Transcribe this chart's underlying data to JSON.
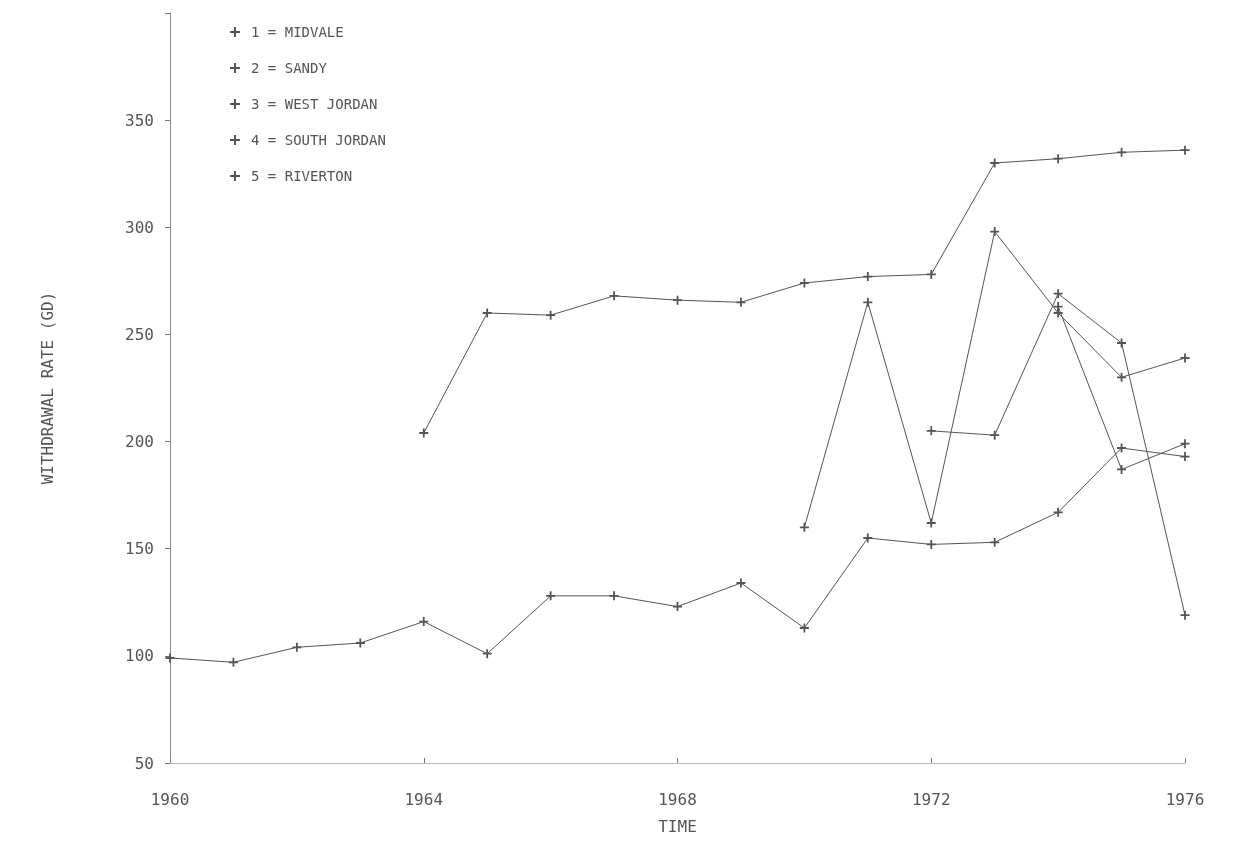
{
  "chart_data": {
    "type": "line",
    "xlabel": "TIME",
    "ylabel": "WITHDRAWAL RATE (GD)",
    "x": [
      1960,
      1961,
      1962,
      1963,
      1964,
      1965,
      1966,
      1967,
      1968,
      1969,
      1970,
      1971,
      1972,
      1973,
      1974,
      1975,
      1976
    ],
    "xlim": [
      1960,
      1976
    ],
    "xticks": [
      1960,
      1964,
      1968,
      1972,
      1976
    ],
    "ylim": [
      50,
      400
    ],
    "yticks": [
      50,
      100,
      150,
      200,
      250,
      300,
      350,
      {
        "value": 400,
        "label": null
      }
    ],
    "grid": false,
    "legend": "top left",
    "line_style": "solid",
    "marker": "cross",
    "series": [
      {
        "name": "1 = MIDVALE",
        "color": "#555555",
        "values": [
          null,
          null,
          null,
          null,
          204,
          260,
          259,
          268,
          266,
          265,
          274,
          277,
          278,
          330,
          332,
          335,
          336
        ]
      },
      {
        "name": "2 = SANDY",
        "color": "#555555",
        "values": [
          null,
          null,
          null,
          null,
          null,
          null,
          null,
          null,
          null,
          null,
          null,
          null,
          null,
          null,
          263,
          187,
          199
        ]
      },
      {
        "name": "3 = WEST JORDAN",
        "color": "#555555",
        "values": [
          null,
          null,
          null,
          null,
          null,
          null,
          null,
          null,
          null,
          null,
          160,
          265,
          162,
          298,
          260,
          230,
          239
        ]
      },
      {
        "name": "4 = SOUTH JORDAN",
        "color": "#555555",
        "values": [
          99,
          97,
          104,
          106,
          116,
          101,
          128,
          128,
          123,
          134,
          113,
          155,
          152,
          153,
          167,
          197,
          193
        ]
      },
      {
        "name": "5 = RIVERTON",
        "color": "#555555",
        "values": [
          null,
          null,
          null,
          null,
          null,
          null,
          null,
          null,
          null,
          null,
          null,
          null,
          205,
          203,
          269,
          246,
          119
        ]
      }
    ]
  }
}
